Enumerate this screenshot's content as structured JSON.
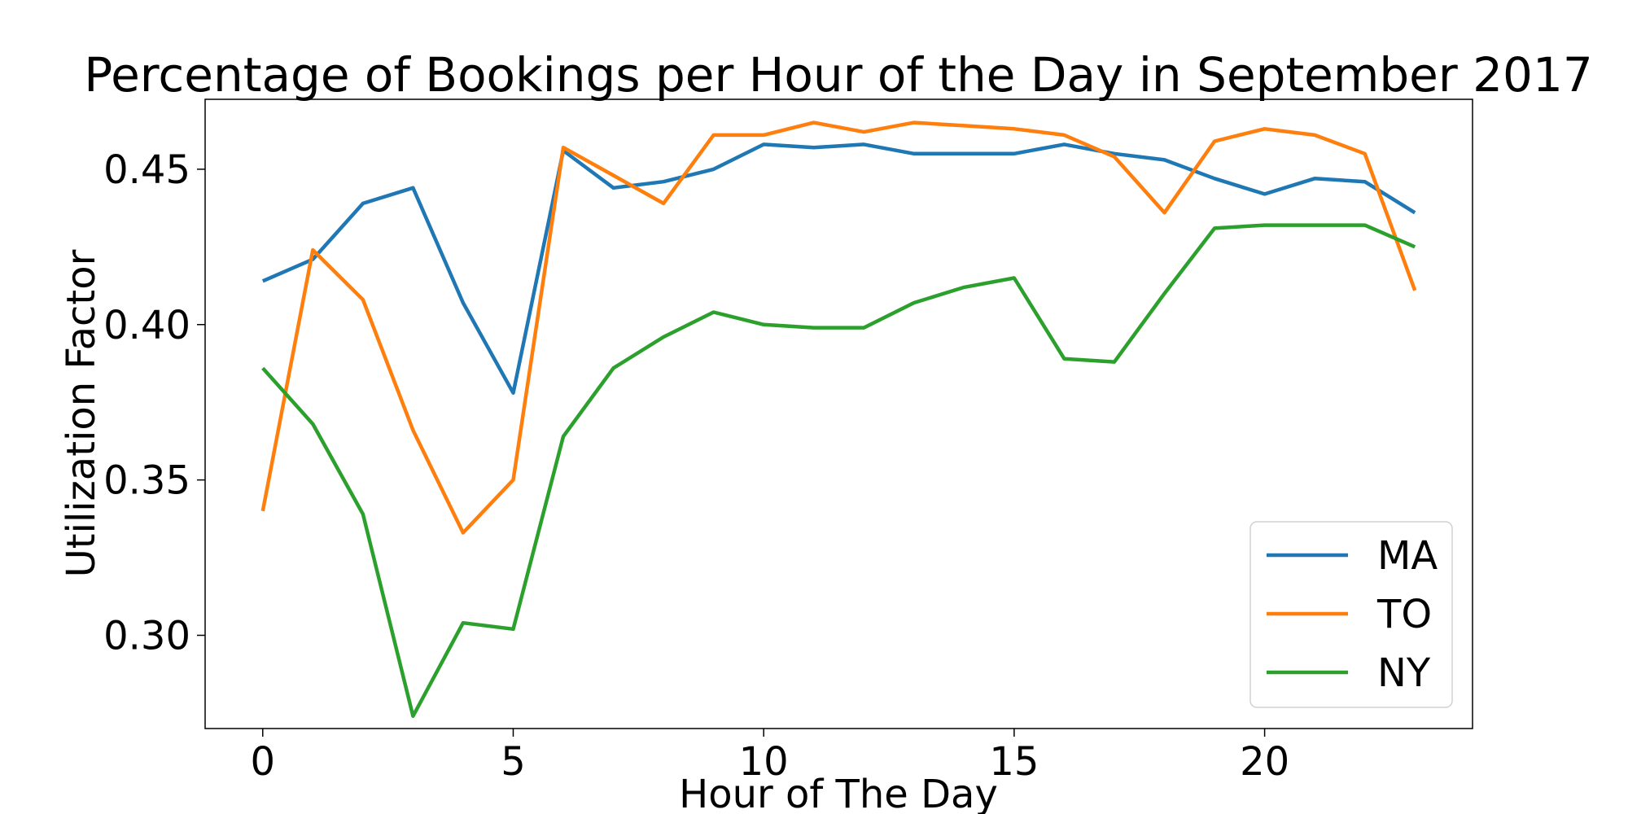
{
  "chart_data": {
    "type": "line",
    "title": "Percentage of Bookings per Hour of the Day in September 2017",
    "xlabel": "Hour of The Day",
    "ylabel": "Utilization Factor",
    "xlim": [
      -1.15,
      24.15
    ],
    "ylim": [
      0.27,
      0.4725
    ],
    "x_ticks": [
      0,
      5,
      10,
      15,
      20
    ],
    "x_tick_labels": [
      "0",
      "5",
      "10",
      "15",
      "20"
    ],
    "y_ticks": [
      0.3,
      0.35,
      0.4,
      0.45
    ],
    "y_tick_labels": [
      "0.30",
      "0.35",
      "0.40",
      "0.45"
    ],
    "grid": false,
    "legend_position": "lower-right",
    "x": [
      0,
      1,
      2,
      3,
      4,
      5,
      6,
      7,
      8,
      9,
      10,
      11,
      12,
      13,
      14,
      15,
      16,
      17,
      18,
      19,
      20,
      21,
      22,
      23
    ],
    "series": [
      {
        "name": "MA",
        "color": "#1f77b4",
        "values": [
          0.414,
          0.421,
          0.439,
          0.444,
          0.407,
          0.378,
          0.456,
          0.444,
          0.446,
          0.45,
          0.458,
          0.457,
          0.458,
          0.455,
          0.455,
          0.455,
          0.458,
          0.455,
          0.453,
          0.447,
          0.442,
          0.447,
          0.446,
          0.436
        ]
      },
      {
        "name": "TO",
        "color": "#ff7f0e",
        "values": [
          0.34,
          0.424,
          0.408,
          0.366,
          0.333,
          0.35,
          0.457,
          0.448,
          0.439,
          0.461,
          0.461,
          0.465,
          0.462,
          0.465,
          0.464,
          0.463,
          0.461,
          0.454,
          0.436,
          0.459,
          0.463,
          0.461,
          0.455,
          0.411
        ]
      },
      {
        "name": "NY",
        "color": "#2ca02c",
        "values": [
          0.386,
          0.368,
          0.339,
          0.274,
          0.304,
          0.302,
          0.364,
          0.386,
          0.396,
          0.404,
          0.4,
          0.399,
          0.399,
          0.407,
          0.412,
          0.415,
          0.389,
          0.388,
          0.41,
          0.431,
          0.432,
          0.432,
          0.432,
          0.425
        ]
      }
    ]
  }
}
